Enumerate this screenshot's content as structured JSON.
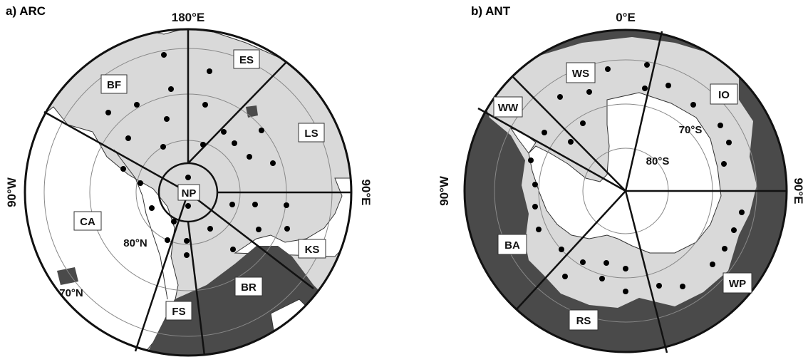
{
  "colors": {
    "ocean_open": "#ffffff",
    "sea_ice": "#d9d9d9",
    "land_ice": "#ffffff",
    "ice_free_ocean": "#4a4a4a",
    "outline": "#111111"
  },
  "arc": {
    "label": "a) ARC",
    "lon_labels": {
      "top": "180°E",
      "left": "90°W",
      "right": "90°E"
    },
    "lat_labels": {
      "inner": "80°N",
      "outer": "70°N"
    },
    "regions": {
      "np": "NP",
      "es": "ES",
      "bf": "BF",
      "ls": "LS",
      "ca": "CA",
      "ks": "KS",
      "br": "BR",
      "fs": "FS"
    }
  },
  "ant": {
    "label": "b) ANT",
    "lon_labels": {
      "top": "0°E",
      "left": "90°W",
      "right": "90°E"
    },
    "lat_labels": {
      "inner": "80°S",
      "outer": "70°S"
    },
    "regions": {
      "ws": "WS",
      "io": "IO",
      "ww": "WW",
      "ba": "BA",
      "rs": "RS",
      "wp": "WP"
    }
  }
}
